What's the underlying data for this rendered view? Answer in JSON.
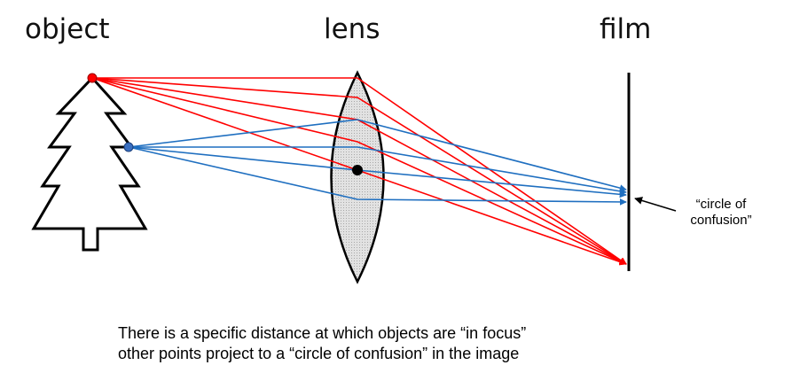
{
  "labels": {
    "object": "object",
    "lens": "lens",
    "film": "film"
  },
  "annotation": {
    "line1": "“circle of",
    "line2": "confusion”"
  },
  "caption": {
    "line1": "There is a specific distance at which objects are “in focus”",
    "line2": "other points project to a “circle of confusion” in the image"
  },
  "colors": {
    "in_focus_rays": "#ff0000",
    "out_of_focus_rays": "#1f6fc0",
    "in_focus_point": "#ff0000",
    "out_of_focus_point": "#3a6fc0",
    "lens_fill": "#d3d3d3",
    "outline": "#000000"
  }
}
